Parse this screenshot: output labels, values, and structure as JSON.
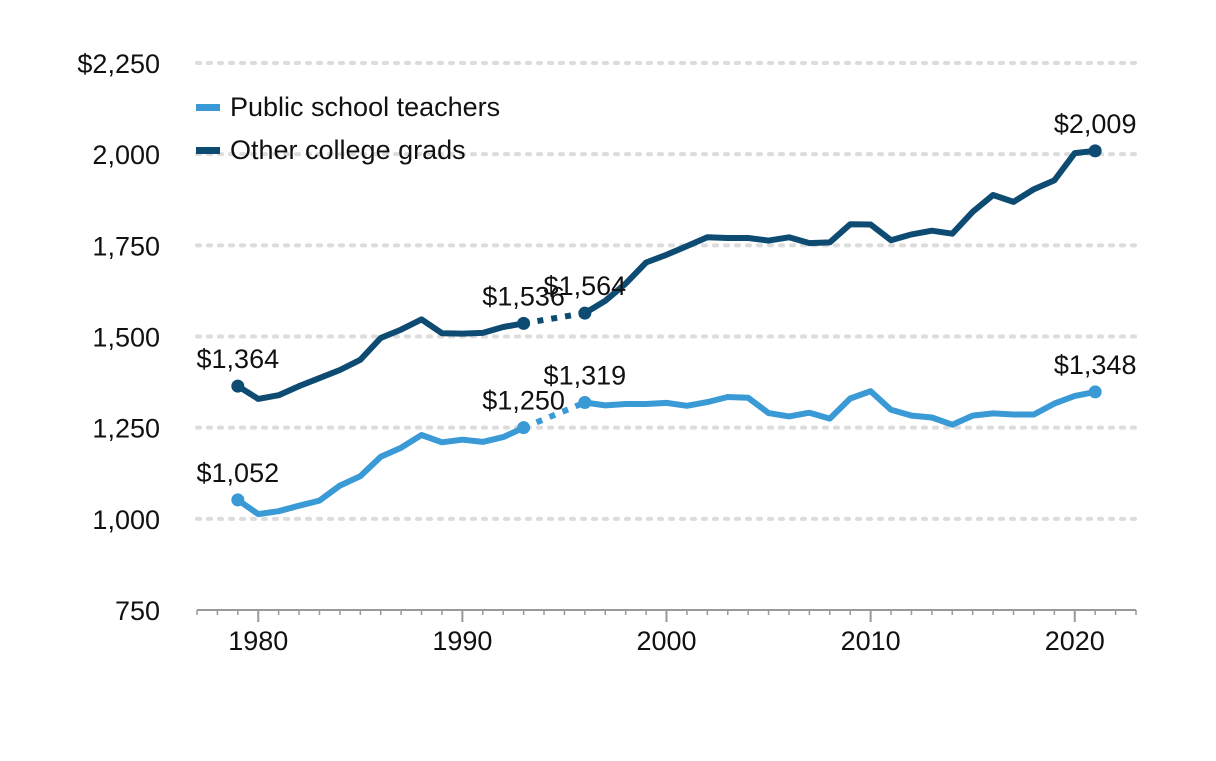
{
  "chart_data": {
    "type": "line",
    "title": "",
    "xlabel": "",
    "ylabel": "",
    "xlim": [
      1977,
      2023
    ],
    "ylim": [
      750,
      2250
    ],
    "x_ticks": [
      1980,
      1990,
      2000,
      2010,
      2020
    ],
    "x_tick_labels": [
      "1980",
      "1990",
      "2000",
      "2010",
      "2020"
    ],
    "y_ticks": [
      750,
      1000,
      1250,
      1500,
      1750,
      2000,
      2250
    ],
    "y_tick_labels": [
      "750",
      "1,000",
      "1,250",
      "1,500",
      "1,750",
      "2,000",
      "$2,250"
    ],
    "grid": true,
    "legend_position": "top-left",
    "gap": {
      "from": 1993,
      "to": 1996,
      "style": "dotted"
    },
    "series": [
      {
        "name": "Public school teachers",
        "color": "#3a9ad6",
        "points": [
          [
            1979,
            1052
          ],
          [
            1980,
            1013
          ],
          [
            1981,
            1021
          ],
          [
            1982,
            1036
          ],
          [
            1983,
            1050
          ],
          [
            1984,
            1091
          ],
          [
            1985,
            1117
          ],
          [
            1986,
            1170
          ],
          [
            1987,
            1195
          ],
          [
            1988,
            1230
          ],
          [
            1989,
            1210
          ],
          [
            1990,
            1217
          ],
          [
            1991,
            1211
          ],
          [
            1992,
            1224
          ],
          [
            1993,
            1250
          ],
          [
            1996,
            1319
          ],
          [
            1997,
            1311
          ],
          [
            1998,
            1315
          ],
          [
            1999,
            1315
          ],
          [
            2000,
            1318
          ],
          [
            2001,
            1310
          ],
          [
            2002,
            1320
          ],
          [
            2003,
            1334
          ],
          [
            2004,
            1332
          ],
          [
            2005,
            1290
          ],
          [
            2006,
            1281
          ],
          [
            2007,
            1291
          ],
          [
            2008,
            1275
          ],
          [
            2009,
            1330
          ],
          [
            2010,
            1350
          ],
          [
            2011,
            1299
          ],
          [
            2012,
            1283
          ],
          [
            2013,
            1278
          ],
          [
            2014,
            1258
          ],
          [
            2015,
            1283
          ],
          [
            2016,
            1289
          ],
          [
            2017,
            1286
          ],
          [
            2018,
            1286
          ],
          [
            2019,
            1316
          ],
          [
            2020,
            1337
          ],
          [
            2021,
            1348
          ]
        ],
        "labeled_points": [
          {
            "x": 1979,
            "y": 1052,
            "label": "$1,052"
          },
          {
            "x": 1993,
            "y": 1250,
            "label": "$1,250"
          },
          {
            "x": 1996,
            "y": 1319,
            "label": "$1,319"
          },
          {
            "x": 2021,
            "y": 1348,
            "label": "$1,348"
          }
        ]
      },
      {
        "name": "Other college grads",
        "color": "#0d4b72",
        "points": [
          [
            1979,
            1364
          ],
          [
            1980,
            1329
          ],
          [
            1981,
            1339
          ],
          [
            1982,
            1364
          ],
          [
            1983,
            1386
          ],
          [
            1984,
            1408
          ],
          [
            1985,
            1436
          ],
          [
            1986,
            1496
          ],
          [
            1987,
            1519
          ],
          [
            1988,
            1547
          ],
          [
            1989,
            1509
          ],
          [
            1990,
            1508
          ],
          [
            1991,
            1510
          ],
          [
            1992,
            1526
          ],
          [
            1993,
            1536
          ],
          [
            1996,
            1564
          ],
          [
            1997,
            1598
          ],
          [
            1998,
            1645
          ],
          [
            1999,
            1703
          ],
          [
            2000,
            1724
          ],
          [
            2001,
            1748
          ],
          [
            2002,
            1772
          ],
          [
            2003,
            1770
          ],
          [
            2004,
            1770
          ],
          [
            2005,
            1763
          ],
          [
            2006,
            1772
          ],
          [
            2007,
            1756
          ],
          [
            2008,
            1758
          ],
          [
            2009,
            1808
          ],
          [
            2010,
            1807
          ],
          [
            2011,
            1764
          ],
          [
            2012,
            1780
          ],
          [
            2013,
            1790
          ],
          [
            2014,
            1782
          ],
          [
            2015,
            1842
          ],
          [
            2016,
            1888
          ],
          [
            2017,
            1869
          ],
          [
            2018,
            1904
          ],
          [
            2019,
            1928
          ],
          [
            2020,
            2003
          ],
          [
            2021,
            2009
          ]
        ],
        "labeled_points": [
          {
            "x": 1979,
            "y": 1364,
            "label": "$1,364"
          },
          {
            "x": 1993,
            "y": 1536,
            "label": "$1,536"
          },
          {
            "x": 1996,
            "y": 1564,
            "label": "$1,564"
          },
          {
            "x": 2021,
            "y": 2009,
            "label": "$2,009"
          }
        ]
      }
    ]
  }
}
